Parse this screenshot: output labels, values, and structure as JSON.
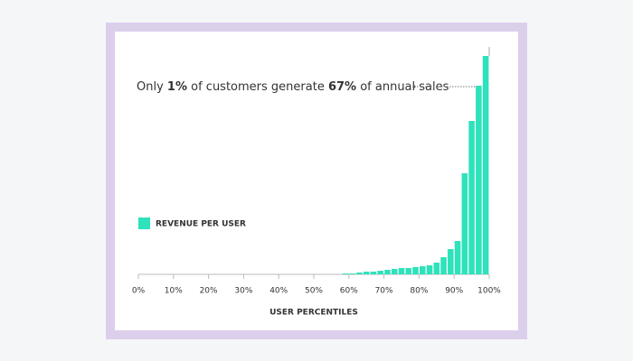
{
  "chart_data": {
    "type": "histogram",
    "annotation": [
      {
        "text": "Only ",
        "bold": false
      },
      {
        "text": "1%",
        "bold": true
      },
      {
        "text": " of customers generate ",
        "bold": false
      },
      {
        "text": "67%",
        "bold": true
      },
      {
        "text": " of annual sales",
        "bold": false
      }
    ],
    "legend": "REVENUE PER USER",
    "xlabel": "USER PERCENTILES",
    "bins": [
      58,
      60,
      62,
      64,
      66,
      68,
      70,
      72,
      74,
      76,
      78,
      80,
      82,
      84,
      86,
      88,
      90,
      92,
      94,
      96,
      98,
      100
    ],
    "values": [
      1,
      1,
      2,
      3,
      3,
      4,
      5,
      6,
      7,
      7,
      8,
      9,
      10,
      13,
      19,
      28,
      37,
      112,
      170,
      209,
      242
    ],
    "color": "#2ee2bb",
    "xlim": [
      0,
      100
    ],
    "xticks": [
      {
        "value": 0,
        "label": "0%"
      },
      {
        "value": 10,
        "label": "10%"
      },
      {
        "value": 20,
        "label": "20%"
      },
      {
        "value": 30,
        "label": "30%"
      },
      {
        "value": 40,
        "label": "40%"
      },
      {
        "value": 50,
        "label": "50%"
      },
      {
        "value": 60,
        "label": "60%"
      },
      {
        "value": 70,
        "label": "70%"
      },
      {
        "value": 80,
        "label": "80%"
      },
      {
        "value": 90,
        "label": "90%"
      },
      {
        "value": 100,
        "label": "100%"
      }
    ],
    "ylim": [
      0,
      250
    ]
  }
}
